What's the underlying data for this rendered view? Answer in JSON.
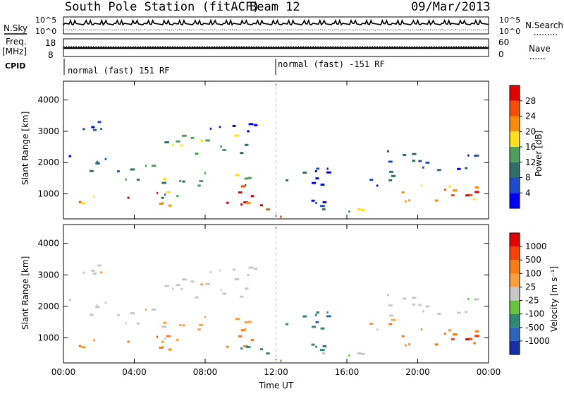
{
  "header": {
    "title": "South Pole Station (fitACF)",
    "beam": "Beam 12",
    "date": "09/Mar/2013"
  },
  "sky_panel": {
    "left_label": "N.Sky",
    "right_label": "N.Search",
    "ticks_left": [
      "10^5",
      "10^0"
    ],
    "ticks_right": [
      "10^5",
      "10^0"
    ]
  },
  "freq_panel": {
    "left_label_1": "Freq.",
    "left_label_2": "[MHz]",
    "right_label": "Nave",
    "ticks_left": [
      "18",
      "8"
    ],
    "ticks_right": [
      "60",
      "0"
    ]
  },
  "cpid": {
    "label": "CPID",
    "segments": [
      {
        "start_ut": 0,
        "text": "normal (fast) 151 RF"
      },
      {
        "start_ut": 12,
        "text": "normal (fast) -151 RF"
      }
    ]
  },
  "x_axis": {
    "label": "Time UT",
    "ticks": [
      "00:00",
      "04:00",
      "08:00",
      "12:00",
      "16:00",
      "20:00",
      "00:00"
    ],
    "range_hours": [
      0,
      24
    ]
  },
  "chart_data": [
    {
      "type": "heatmap",
      "name": "power",
      "ylabel": "Slant Range [km]",
      "yticks": [
        "4000",
        "3000",
        "2000",
        "1000"
      ],
      "ylim": [
        200,
        4600
      ],
      "colorbar": {
        "label": "Power [dB]",
        "ticks": [
          "28",
          "24",
          "20",
          "16",
          "12",
          "8",
          "4"
        ],
        "colors": [
          "#0000ff",
          "#1a4bd1",
          "#2f6f66",
          "#4fa05a",
          "#ffe11a",
          "#ff8c00",
          "#ff4a00",
          "#e60000"
        ]
      }
    },
    {
      "type": "heatmap",
      "name": "velocity",
      "ylabel": "Slant Range [km]",
      "yticks": [
        "4000",
        "3000",
        "2000",
        "1000"
      ],
      "ylim": [
        200,
        4600
      ],
      "colorbar": {
        "label": "Velocity [m s⁻¹]",
        "ticks": [
          "1000",
          "500",
          "100",
          "25",
          "-25",
          "-100",
          "-500",
          "-1000"
        ],
        "colors": [
          "#1630ad",
          "#2b63c0",
          "#2e8a73",
          "#63c63c",
          "#c8c8c8",
          "#ff9e3a",
          "#ff7a0f",
          "#ff4000",
          "#e60000"
        ]
      }
    }
  ]
}
